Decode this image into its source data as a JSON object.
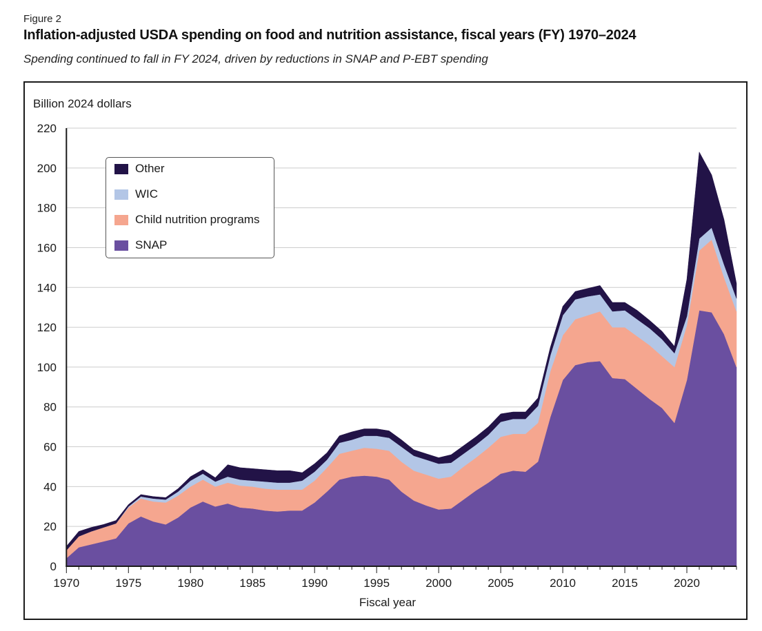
{
  "figure_label": "Figure 2",
  "title": "Inflation-adjusted USDA spending on food and nutrition assistance, fiscal years (FY) 1970–2024",
  "subtitle": "Spending continued to fall in FY 2024, driven by reductions in SNAP and P-EBT spending",
  "chart_data": {
    "type": "area",
    "stacked": true,
    "title": "Inflation-adjusted USDA spending on food and nutrition assistance, fiscal years (FY) 1970–2024",
    "ylabel": "Billion 2024 dollars",
    "xlabel": "Fiscal year",
    "ylim": [
      0,
      220
    ],
    "xlim": [
      1970,
      2024
    ],
    "yticks": [
      0,
      20,
      40,
      60,
      80,
      100,
      120,
      140,
      160,
      180,
      200,
      220
    ],
    "xticks": [
      1970,
      1975,
      1980,
      1985,
      1990,
      1995,
      2000,
      2005,
      2010,
      2015,
      2020
    ],
    "grid": "horizontal",
    "legend_position": "top-left",
    "x": [
      1970,
      1971,
      1972,
      1973,
      1974,
      1975,
      1976,
      1977,
      1978,
      1979,
      1980,
      1981,
      1982,
      1983,
      1984,
      1985,
      1986,
      1987,
      1988,
      1989,
      1990,
      1991,
      1992,
      1993,
      1994,
      1995,
      1996,
      1997,
      1998,
      1999,
      2000,
      2001,
      2002,
      2003,
      2004,
      2005,
      2006,
      2007,
      2008,
      2009,
      2010,
      2011,
      2012,
      2013,
      2014,
      2015,
      2016,
      2017,
      2018,
      2019,
      2020,
      2021,
      2022,
      2023,
      2024
    ],
    "series": [
      {
        "name": "SNAP",
        "color": "#6a4fa0",
        "values": [
          4,
          9.5,
          11,
          12.5,
          14,
          21.5,
          25,
          22.5,
          21,
          24.5,
          29.5,
          32.5,
          30,
          31.5,
          29.5,
          29,
          28,
          27.5,
          28,
          28,
          32,
          37.5,
          43.5,
          45,
          45.5,
          45,
          43.5,
          37.5,
          33,
          30.5,
          28.5,
          29,
          33.5,
          38,
          42,
          46.5,
          48,
          47.5,
          52.5,
          75,
          93.5,
          101,
          102.5,
          103,
          94.5,
          94,
          89,
          84,
          79.5,
          72,
          93.5,
          128.5,
          127.5,
          116.5,
          100
        ]
      },
      {
        "name": "Child nutrition programs",
        "color": "#f5a68f",
        "values": [
          4,
          5.5,
          6.5,
          7,
          7.5,
          8,
          9,
          10,
          11,
          11,
          10.5,
          11,
          10,
          10.5,
          11,
          11,
          11,
          11,
          10.5,
          10.5,
          11,
          12,
          13,
          13,
          14,
          14,
          14.5,
          15,
          15,
          15.5,
          15.5,
          16,
          16.5,
          16.5,
          17.5,
          18.5,
          18.5,
          19,
          19.5,
          23,
          22.5,
          23,
          23.5,
          25,
          25.5,
          26,
          26.5,
          27,
          26,
          28,
          27.5,
          30,
          36.5,
          28.5,
          28
        ]
      },
      {
        "name": "WIC",
        "color": "#b3c6e6",
        "values": [
          0,
          0,
          0,
          0,
          0,
          0.5,
          1,
          1.5,
          1.5,
          2,
          3,
          3,
          2.5,
          3,
          3,
          3,
          3.5,
          3.5,
          3.5,
          4.5,
          4.5,
          4,
          5.5,
          5.5,
          6,
          6.5,
          6.5,
          7.5,
          7.5,
          7.5,
          7.5,
          7,
          6.5,
          6.5,
          6.5,
          7.5,
          7.5,
          7.5,
          8.5,
          8,
          10,
          10,
          9.5,
          8.5,
          8,
          8.5,
          8.5,
          8.5,
          8.5,
          7,
          4.5,
          6,
          6,
          6.5,
          6.5
        ]
      },
      {
        "name": "Other",
        "color": "#221347",
        "values": [
          2,
          2.5,
          2,
          1.5,
          1.5,
          1,
          1,
          1,
          1,
          1.5,
          2,
          2,
          2,
          6,
          6,
          6,
          6,
          6,
          6,
          4,
          4,
          3.5,
          3.5,
          4,
          3.5,
          3.5,
          3.5,
          3.5,
          3,
          3,
          3,
          4,
          4,
          4,
          4,
          4,
          3.5,
          3.5,
          4,
          4,
          4.5,
          4,
          4,
          4.5,
          4.5,
          4,
          4.5,
          4,
          4,
          3.5,
          18.5,
          43.5,
          26.5,
          22.5,
          7.5
        ]
      }
    ],
    "legend_order": [
      "Other",
      "WIC",
      "Child nutrition programs",
      "SNAP"
    ]
  }
}
